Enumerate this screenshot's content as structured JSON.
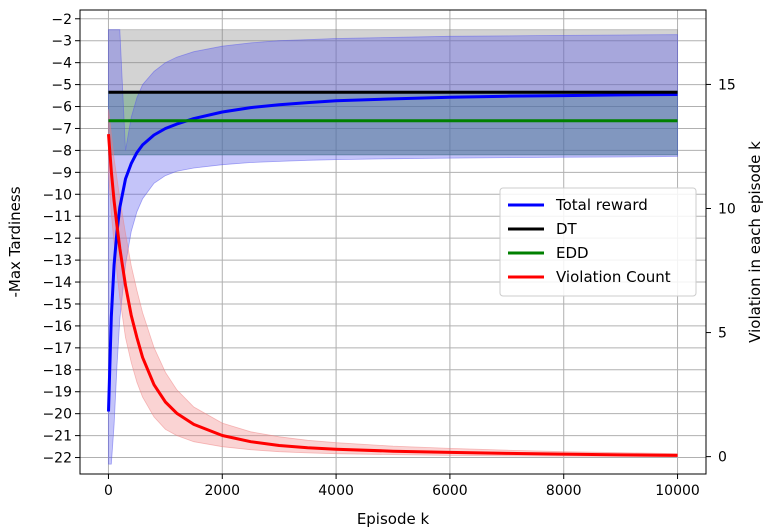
{
  "chart_data": {
    "type": "line",
    "title": "",
    "xlabel": "Episode k",
    "ylabel": "-Max Tardiness",
    "y2label": "Violation in each episode k",
    "xlim": [
      -500,
      10500
    ],
    "ylim": [
      -22.75,
      -1.6
    ],
    "y2lim": [
      -0.7,
      18.0
    ],
    "x_ticks": [
      0,
      2000,
      4000,
      6000,
      8000,
      10000
    ],
    "y_ticks": [
      -2,
      -3,
      -4,
      -5,
      -6,
      -7,
      -8,
      -9,
      -10,
      -11,
      -12,
      -13,
      -14,
      -15,
      -16,
      -17,
      -18,
      -19,
      -20,
      -21,
      -22
    ],
    "y2_ticks": [
      0,
      5,
      10,
      15
    ],
    "grid": true,
    "legend_position": "center-right",
    "series": [
      {
        "name": "Total reward",
        "axis": "left",
        "color": "#0000ff",
        "band_color": "#5555ee",
        "x": [
          0,
          50,
          100,
          150,
          200,
          300,
          400,
          500,
          600,
          800,
          1000,
          1200,
          1500,
          2000,
          2500,
          3000,
          3500,
          4000,
          5000,
          6000,
          7000,
          8000,
          9000,
          10000
        ],
        "values": [
          -19.9,
          -15.6,
          -13.2,
          -11.7,
          -10.6,
          -9.3,
          -8.6,
          -8.1,
          -7.75,
          -7.3,
          -7.0,
          -6.8,
          -6.55,
          -6.25,
          -6.05,
          -5.92,
          -5.82,
          -5.74,
          -5.65,
          -5.58,
          -5.53,
          -5.5,
          -5.47,
          -5.45
        ],
        "upper": [
          -2.5,
          -2.5,
          -2.5,
          -2.5,
          -2.5,
          -8.0,
          -6.5,
          -5.6,
          -5.0,
          -4.4,
          -4.0,
          -3.75,
          -3.5,
          -3.25,
          -3.1,
          -3.0,
          -2.95,
          -2.9,
          -2.85,
          -2.8,
          -2.78,
          -2.76,
          -2.74,
          -2.72
        ],
        "lower": [
          -22.3,
          -22.3,
          -20.5,
          -17.8,
          -15.7,
          -13.2,
          -11.7,
          -10.8,
          -10.2,
          -9.5,
          -9.15,
          -8.95,
          -8.8,
          -8.65,
          -8.55,
          -8.5,
          -8.45,
          -8.42,
          -8.38,
          -8.35,
          -8.33,
          -8.31,
          -8.3,
          -8.28
        ]
      },
      {
        "name": "DT",
        "axis": "left",
        "color": "#000000",
        "x": [
          0,
          10000
        ],
        "values": [
          -5.35,
          -5.35
        ],
        "upper": [
          -2.5,
          -2.5
        ],
        "lower": [
          -8.2,
          -8.2
        ],
        "band_color": "#808080"
      },
      {
        "name": "EDD",
        "axis": "left",
        "color": "#008000",
        "x": [
          0,
          10000
        ],
        "values": [
          -6.65,
          -6.65
        ],
        "upper": [
          -5.3,
          -5.3
        ],
        "lower": [
          -8.2,
          -8.2
        ],
        "band_color": "#2e8b57"
      },
      {
        "name": "Violation Count",
        "axis": "right",
        "color": "#ff0000",
        "band_color": "#f08080",
        "x": [
          0,
          50,
          100,
          150,
          200,
          300,
          400,
          500,
          600,
          800,
          1000,
          1200,
          1500,
          2000,
          2500,
          3000,
          3500,
          4000,
          5000,
          6000,
          7000,
          8000,
          9000,
          10000
        ],
        "values": [
          13.0,
          11.5,
          10.3,
          9.3,
          8.4,
          6.9,
          5.7,
          4.8,
          4.0,
          2.9,
          2.2,
          1.75,
          1.3,
          0.85,
          0.6,
          0.45,
          0.36,
          0.3,
          0.22,
          0.17,
          0.13,
          0.1,
          0.07,
          0.05
        ],
        "upper": [
          14.0,
          13.0,
          12.0,
          11.2,
          10.4,
          9.0,
          7.7,
          6.7,
          5.8,
          4.4,
          3.4,
          2.7,
          2.0,
          1.35,
          1.0,
          0.8,
          0.66,
          0.56,
          0.42,
          0.33,
          0.26,
          0.2,
          0.16,
          0.12
        ],
        "lower": [
          11.5,
          9.8,
          8.6,
          7.4,
          6.4,
          4.8,
          3.8,
          3.0,
          2.4,
          1.6,
          1.1,
          0.85,
          0.6,
          0.4,
          0.28,
          0.2,
          0.15,
          0.12,
          0.08,
          0.05,
          0.03,
          0.02,
          0.01,
          0.0
        ]
      }
    ]
  }
}
